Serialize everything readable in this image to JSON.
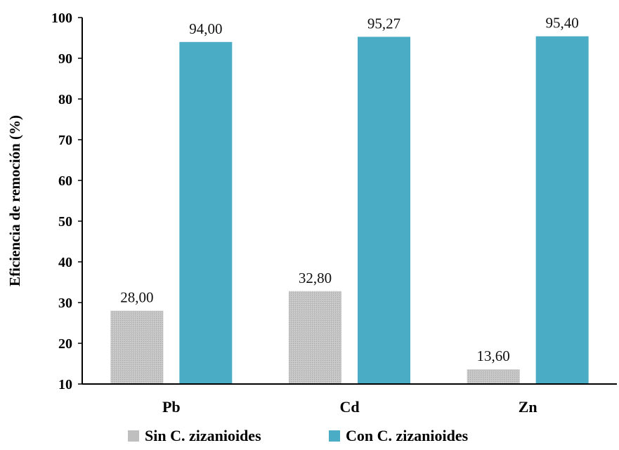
{
  "chart_data": {
    "type": "bar",
    "categories": [
      "Pb",
      "Cd",
      "Zn"
    ],
    "series": [
      {
        "name": "Sin C. zizanioides",
        "values": [
          28.0,
          32.8,
          13.6
        ],
        "labels": [
          "28,00",
          "32,80",
          "13,60"
        ],
        "color": "#bfbfbf"
      },
      {
        "name": "Con C. zizanioides",
        "values": [
          94.0,
          95.27,
          95.4
        ],
        "labels": [
          "94,00",
          "95,27",
          "95,40"
        ],
        "color": "#4bacc6"
      }
    ],
    "ylabel": "Eficiencia de remoción (%)",
    "ylim": [
      10,
      100
    ],
    "yticks": [
      10,
      20,
      30,
      40,
      50,
      60,
      70,
      80,
      90,
      100
    ],
    "grid": false,
    "legend_position": "bottom"
  }
}
